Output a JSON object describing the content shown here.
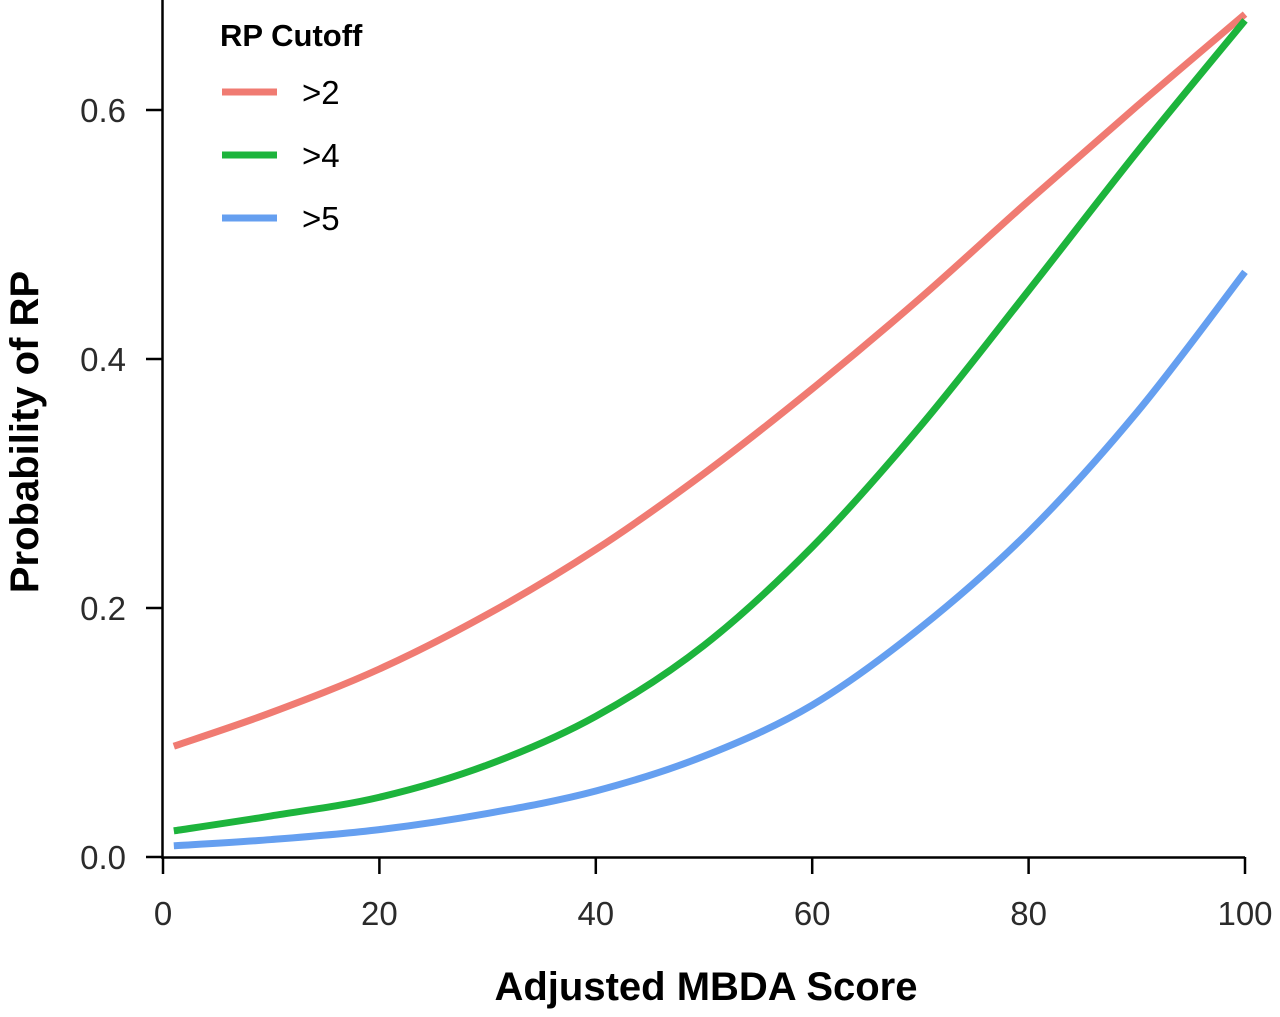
{
  "chart_data": {
    "type": "line",
    "title": "",
    "xlabel": "Adjusted MBDA Score",
    "ylabel": "Probability of RP",
    "xlim": [
      0,
      100
    ],
    "ylim": [
      0,
      0.68
    ],
    "x_ticks": [
      0,
      20,
      40,
      60,
      80,
      100
    ],
    "x_tick_labels": [
      "0",
      "20",
      "40",
      "60",
      "80",
      "100"
    ],
    "y_ticks": [
      0.0,
      0.2,
      0.4,
      0.6
    ],
    "y_tick_labels": [
      "0.0",
      "0.2",
      "0.4",
      "0.6"
    ],
    "grid": false,
    "legend": {
      "title": "RP Cutoff",
      "placement": "top-left"
    },
    "series": [
      {
        "name": ">2",
        "color": "#F07B72",
        "x": [
          1,
          10,
          20,
          30,
          40,
          50,
          60,
          70,
          80,
          90,
          100
        ],
        "y": [
          0.089,
          0.116,
          0.151,
          0.195,
          0.247,
          0.308,
          0.376,
          0.449,
          0.527,
          0.603,
          0.677
        ]
      },
      {
        "name": ">4",
        "color": "#1DB43C",
        "x": [
          1,
          10,
          20,
          30,
          40,
          50,
          60,
          70,
          80,
          90,
          100
        ],
        "y": [
          0.021,
          0.033,
          0.048,
          0.074,
          0.113,
          0.17,
          0.249,
          0.346,
          0.455,
          0.566,
          0.672
        ]
      },
      {
        "name": ">5",
        "color": "#659FF0",
        "x": [
          1,
          10,
          20,
          30,
          40,
          50,
          60,
          70,
          80,
          90,
          100
        ],
        "y": [
          0.009,
          0.014,
          0.022,
          0.035,
          0.053,
          0.081,
          0.122,
          0.184,
          0.261,
          0.357,
          0.47
        ]
      }
    ]
  }
}
